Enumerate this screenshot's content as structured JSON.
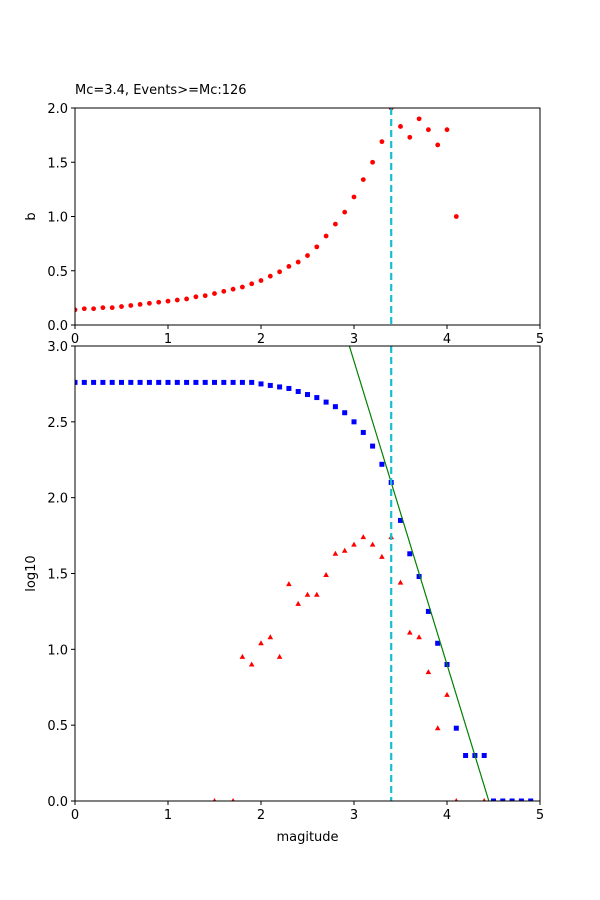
{
  "chart_data": [
    {
      "type": "scatter",
      "title": "Mc=3.4, Events>=Mc:126",
      "y_label": "b",
      "xlim": [
        0,
        5
      ],
      "xticks": [
        0,
        1,
        2,
        3,
        4,
        5
      ],
      "ylim": [
        0,
        2
      ],
      "yticks": [
        {
          "value": 0,
          "label": "0.0"
        },
        0.5,
        {
          "value": 1,
          "label": "1.0"
        },
        1.5,
        {
          "value": 2,
          "label": "2.0"
        }
      ],
      "mc": 3.4,
      "mc_color": "#17becf",
      "series": [
        {
          "color": "#ff0000",
          "marker": "o",
          "x": [
            0,
            0.1,
            0.2,
            0.3,
            0.4,
            0.5,
            0.6,
            0.7,
            0.8,
            0.9,
            1,
            1.1,
            1.2,
            1.3,
            1.4,
            1.5,
            1.6,
            1.7,
            1.8,
            1.9,
            2,
            2.1,
            2.2,
            2.3,
            2.4,
            2.5,
            2.6,
            2.7,
            2.8,
            2.9,
            3,
            3.1,
            3.2,
            3.3,
            3.4,
            3.5,
            3.6,
            3.7,
            3.8,
            3.9,
            4,
            4.1
          ],
          "values": [
            0.14,
            0.15,
            0.15,
            0.16,
            0.16,
            0.17,
            0.18,
            0.19,
            0.2,
            0.21,
            0.22,
            0.23,
            0.24,
            0.26,
            0.27,
            0.29,
            0.31,
            0.33,
            0.35,
            0.38,
            0.41,
            0.45,
            0.49,
            0.54,
            0.58,
            0.64,
            0.72,
            0.82,
            0.93,
            1.04,
            1.18,
            1.34,
            1.5,
            1.69,
            2,
            1.83,
            1.73,
            1.9,
            1.8,
            1.66,
            1.8,
            1
          ]
        }
      ]
    },
    {
      "type": "scatter",
      "x_label": "magitude",
      "y_label": "log10",
      "xlim": [
        0,
        5
      ],
      "xticks": [
        0,
        1,
        2,
        3,
        4,
        5
      ],
      "ylim": [
        0,
        3
      ],
      "yticks": [
        {
          "value": 0,
          "label": "0.0"
        },
        0.5,
        {
          "value": 1,
          "label": "1.0"
        },
        1.5,
        {
          "value": 2,
          "label": "2.0"
        },
        2.5,
        {
          "value": 3,
          "label": "3.0"
        }
      ],
      "mc": 3.4,
      "mc_color": "#17becf",
      "series": [
        {
          "color": "#0000ff",
          "marker": "s",
          "x": [
            0,
            0.1,
            0.2,
            0.3,
            0.4,
            0.5,
            0.6,
            0.7,
            0.8,
            0.9,
            1,
            1.1,
            1.2,
            1.3,
            1.4,
            1.5,
            1.6,
            1.7,
            1.8,
            1.9,
            2,
            2.1,
            2.2,
            2.3,
            2.4,
            2.5,
            2.6,
            2.7,
            2.8,
            2.9,
            3,
            3.1,
            3.2,
            3.3,
            3.4,
            3.5,
            3.6,
            3.7,
            3.8,
            3.9,
            4,
            4.1,
            4.2,
            4.3,
            4.4,
            4.5,
            4.6,
            4.7,
            4.8,
            4.9
          ],
          "values": [
            2.76,
            2.76,
            2.76,
            2.76,
            2.76,
            2.76,
            2.76,
            2.76,
            2.76,
            2.76,
            2.76,
            2.76,
            2.76,
            2.76,
            2.76,
            2.76,
            2.76,
            2.76,
            2.76,
            2.76,
            2.75,
            2.74,
            2.73,
            2.72,
            2.7,
            2.68,
            2.66,
            2.63,
            2.6,
            2.56,
            2.5,
            2.43,
            2.34,
            2.22,
            2.1,
            1.85,
            1.63,
            1.48,
            1.25,
            1.04,
            0.9,
            0.48,
            0.3,
            0.3,
            0.3,
            0,
            0,
            0,
            0,
            0
          ]
        },
        {
          "color": "#ff0000",
          "marker": "^",
          "x": [
            1.5,
            1.7,
            1.8,
            1.9,
            2,
            2.1,
            2.2,
            2.3,
            2.4,
            2.5,
            2.6,
            2.7,
            2.8,
            2.9,
            3,
            3.1,
            3.2,
            3.3,
            3.4,
            3.5,
            3.6,
            3.7,
            3.8,
            3.9,
            4,
            4.1,
            4.4
          ],
          "values": [
            0,
            0,
            0.95,
            0.9,
            1.04,
            1.08,
            0.95,
            1.43,
            1.3,
            1.36,
            1.36,
            1.49,
            1.63,
            1.65,
            1.69,
            1.74,
            1.69,
            1.61,
            1.74,
            1.44,
            1.11,
            1.08,
            0.85,
            0.48,
            0.7,
            0,
            0
          ]
        },
        {
          "color": "#008000",
          "marker": "line",
          "x": [
            2.95,
            4.45
          ],
          "values": [
            3,
            0
          ]
        }
      ]
    }
  ]
}
